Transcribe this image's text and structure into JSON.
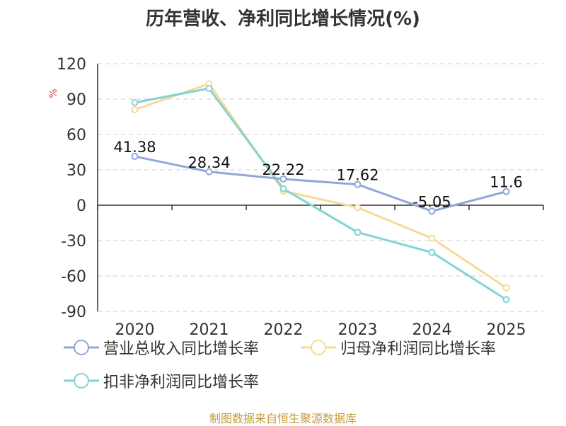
{
  "chart_data": {
    "type": "line",
    "title": "历年营收、净利同比增长情况(%)",
    "ylabel": "%",
    "categories": [
      "2020",
      "2021",
      "2022",
      "2023",
      "2024",
      "2025"
    ],
    "ylim": [
      -90,
      120
    ],
    "yticks": [
      120,
      90,
      60,
      30,
      0,
      -30,
      -60,
      -90
    ],
    "grid": true,
    "legend_position": "bottom",
    "series": [
      {
        "name": "营业总收入同比增长率",
        "color": "#8fa8d8",
        "values": [
          41.38,
          28.34,
          22.22,
          17.62,
          -5.05,
          11.6
        ],
        "labels": [
          "41.38",
          "28.34",
          "22.22",
          "17.62",
          "-5.05",
          "11.6"
        ]
      },
      {
        "name": "归母净利润同比增长率",
        "color": "#f9d99a",
        "values": [
          81,
          103,
          12,
          -2,
          -28,
          -70
        ]
      },
      {
        "name": "扣非净利润同比增长率",
        "color": "#82d4d4",
        "values": [
          87,
          99,
          14,
          -23,
          -40,
          -80
        ]
      }
    ]
  },
  "source_text": "制图数据来自恒生聚源数据库"
}
